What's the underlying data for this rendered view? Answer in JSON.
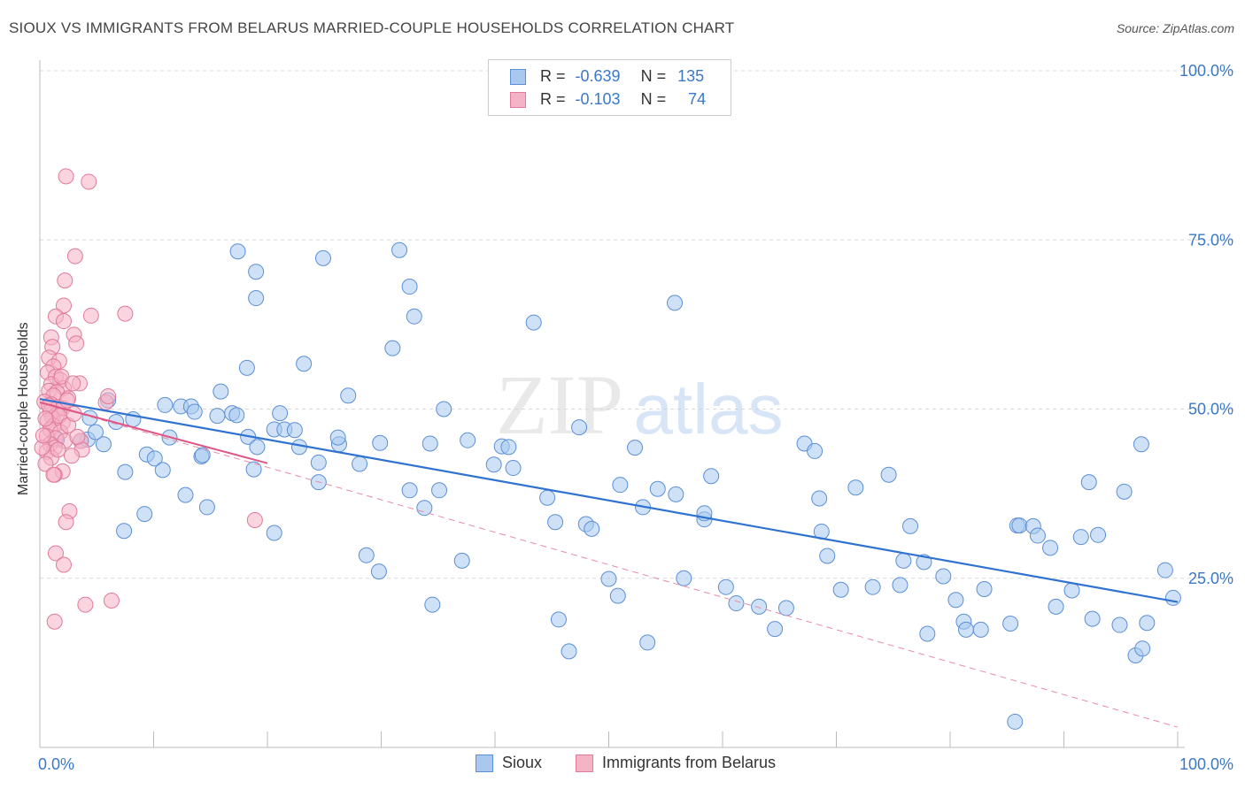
{
  "header": {
    "title": "SIOUX VS IMMIGRANTS FROM BELARUS MARRIED-COUPLE HOUSEHOLDS CORRELATION CHART",
    "source": "Source: ZipAtlas.com"
  },
  "watermark": {
    "zip": "ZIP",
    "atlas": "atlas"
  },
  "legend": {
    "rows": [
      {
        "r_label": "R =",
        "r_value": "-0.639",
        "n_label": "N =",
        "n_value": "135",
        "color": "#a8c8f0"
      },
      {
        "r_label": "R =",
        "r_value": "-0.103",
        "n_label": "N =",
        "n_value": "74",
        "color": "#f5b3c6"
      }
    ]
  },
  "bottom_legend": [
    {
      "label": "Sioux",
      "color": "#a8c8f0"
    },
    {
      "label": "Immigrants from Belarus",
      "color": "#f5b3c6"
    }
  ],
  "chart_data": {
    "type": "scatter",
    "title": "SIOUX VS IMMIGRANTS FROM BELARUS MARRIED-COUPLE HOUSEHOLDS CORRELATION CHART",
    "xlabel": "",
    "ylabel": "Married-couple Households",
    "xlim": [
      0,
      100
    ],
    "ylim": [
      0,
      100
    ],
    "x_tick_labels": [
      "0.0%",
      "100.0%"
    ],
    "y_tick_labels": [
      "25.0%",
      "50.0%",
      "75.0%",
      "100.0%"
    ],
    "y_ticks": [
      25,
      50,
      75,
      100
    ],
    "grid": true,
    "legend_position": "top-center",
    "series": [
      {
        "name": "Sioux",
        "color": "#a8c8f0",
        "stroke": "#5b8fd6",
        "trend": {
          "x": [
            0,
            100
          ],
          "y": [
            51.5,
            21.5
          ],
          "color": "#2f72d0"
        },
        "points": [
          [
            1.5,
            45.5
          ],
          [
            4.2,
            45.5
          ],
          [
            5.6,
            44.8
          ],
          [
            3.6,
            45.3
          ],
          [
            4.9,
            46.6
          ],
          [
            6.0,
            51.3
          ],
          [
            4.4,
            48.7
          ],
          [
            6.7,
            48.1
          ],
          [
            8.2,
            48.5
          ],
          [
            7.5,
            40.7
          ],
          [
            7.4,
            32.0
          ],
          [
            9.4,
            43.3
          ],
          [
            10.1,
            42.7
          ],
          [
            10.8,
            41.0
          ],
          [
            11.0,
            50.6
          ],
          [
            11.4,
            45.8
          ],
          [
            12.4,
            50.4
          ],
          [
            13.3,
            50.4
          ],
          [
            14.2,
            43.0
          ],
          [
            14.3,
            43.2
          ],
          [
            12.8,
            37.3
          ],
          [
            14.7,
            35.5
          ],
          [
            15.6,
            49.0
          ],
          [
            15.9,
            52.6
          ],
          [
            16.9,
            49.4
          ],
          [
            17.3,
            49.1
          ],
          [
            17.4,
            73.3
          ],
          [
            19.0,
            70.3
          ],
          [
            18.8,
            41.1
          ],
          [
            19.0,
            66.4
          ],
          [
            18.3,
            45.9
          ],
          [
            19.1,
            44.4
          ],
          [
            20.6,
            47.0
          ],
          [
            21.1,
            49.4
          ],
          [
            21.5,
            47.0
          ],
          [
            22.4,
            46.9
          ],
          [
            22.8,
            44.4
          ],
          [
            24.5,
            42.1
          ],
          [
            23.2,
            56.7
          ],
          [
            24.5,
            39.2
          ],
          [
            24.9,
            72.3
          ],
          [
            26.3,
            44.8
          ],
          [
            26.2,
            45.8
          ],
          [
            28.1,
            41.9
          ],
          [
            27.1,
            52.0
          ],
          [
            28.7,
            28.4
          ],
          [
            29.8,
            26.0
          ],
          [
            29.9,
            45.0
          ],
          [
            31.0,
            59.0
          ],
          [
            31.6,
            73.5
          ],
          [
            32.5,
            68.1
          ],
          [
            32.9,
            63.7
          ],
          [
            32.5,
            38.0
          ],
          [
            34.3,
            44.9
          ],
          [
            34.5,
            21.1
          ],
          [
            35.1,
            38.0
          ],
          [
            35.5,
            50.0
          ],
          [
            37.1,
            27.6
          ],
          [
            37.6,
            45.4
          ],
          [
            39.9,
            41.8
          ],
          [
            40.6,
            44.5
          ],
          [
            41.2,
            44.4
          ],
          [
            41.6,
            41.3
          ],
          [
            43.4,
            62.8
          ],
          [
            44.6,
            36.9
          ],
          [
            45.3,
            33.3
          ],
          [
            45.6,
            18.9
          ],
          [
            46.5,
            14.2
          ],
          [
            47.4,
            47.3
          ],
          [
            48.0,
            33.0
          ],
          [
            48.5,
            32.3
          ],
          [
            50.0,
            24.9
          ],
          [
            50.8,
            22.4
          ],
          [
            51.0,
            38.8
          ],
          [
            52.3,
            44.3
          ],
          [
            53.0,
            35.5
          ],
          [
            53.4,
            15.5
          ],
          [
            54.3,
            38.2
          ],
          [
            55.8,
            65.7
          ],
          [
            55.9,
            37.4
          ],
          [
            56.6,
            25.0
          ],
          [
            58.4,
            33.7
          ],
          [
            59.0,
            40.1
          ],
          [
            60.3,
            23.7
          ],
          [
            61.2,
            21.3
          ],
          [
            63.2,
            20.8
          ],
          [
            64.6,
            17.5
          ],
          [
            65.6,
            20.6
          ],
          [
            67.2,
            44.9
          ],
          [
            68.1,
            43.8
          ],
          [
            68.5,
            36.8
          ],
          [
            68.7,
            31.9
          ],
          [
            69.2,
            28.3
          ],
          [
            70.4,
            23.3
          ],
          [
            71.7,
            38.4
          ],
          [
            73.2,
            23.7
          ],
          [
            74.6,
            40.3
          ],
          [
            75.6,
            24.0
          ],
          [
            75.9,
            27.6
          ],
          [
            76.5,
            32.7
          ],
          [
            78.0,
            16.8
          ],
          [
            79.4,
            25.3
          ],
          [
            80.5,
            21.8
          ],
          [
            81.2,
            18.6
          ],
          [
            81.4,
            17.4
          ],
          [
            82.7,
            17.4
          ],
          [
            83.0,
            23.4
          ],
          [
            85.3,
            18.3
          ],
          [
            85.9,
            32.8
          ],
          [
            86.1,
            32.8
          ],
          [
            87.3,
            32.7
          ],
          [
            87.7,
            31.3
          ],
          [
            88.8,
            29.5
          ],
          [
            89.3,
            20.8
          ],
          [
            90.7,
            23.2
          ],
          [
            92.2,
            39.2
          ],
          [
            92.5,
            19.0
          ],
          [
            93.0,
            31.4
          ],
          [
            94.9,
            18.1
          ],
          [
            96.3,
            13.6
          ],
          [
            96.9,
            14.6
          ],
          [
            96.8,
            44.8
          ],
          [
            97.3,
            18.4
          ],
          [
            98.9,
            26.2
          ],
          [
            99.6,
            22.1
          ],
          [
            95.3,
            37.8
          ],
          [
            91.5,
            31.1
          ],
          [
            85.7,
            3.8
          ],
          [
            58.4,
            34.6
          ],
          [
            33.8,
            35.4
          ],
          [
            18.2,
            56.1
          ],
          [
            13.6,
            49.6
          ],
          [
            9.2,
            34.5
          ],
          [
            20.6,
            31.7
          ],
          [
            77.7,
            27.4
          ]
        ]
      },
      {
        "name": "Immigrants from Belarus",
        "color": "#f5b3c6",
        "stroke": "#e07a9a",
        "trend": {
          "x": [
            0,
            20
          ],
          "y": [
            51.0,
            42.0
          ],
          "color": "#e05585"
        },
        "trend_extended": {
          "x": [
            0,
            100
          ],
          "y": [
            51.0,
            3.0
          ],
          "color": "#e88aa8"
        },
        "points": [
          [
            2.3,
            84.4
          ],
          [
            4.3,
            83.6
          ],
          [
            3.1,
            72.6
          ],
          [
            2.2,
            69.0
          ],
          [
            2.1,
            65.3
          ],
          [
            1.4,
            63.7
          ],
          [
            2.1,
            63.0
          ],
          [
            4.5,
            63.8
          ],
          [
            7.5,
            64.1
          ],
          [
            3.0,
            61.0
          ],
          [
            1.0,
            60.6
          ],
          [
            1.1,
            59.2
          ],
          [
            3.2,
            59.7
          ],
          [
            0.8,
            57.6
          ],
          [
            1.7,
            57.1
          ],
          [
            1.2,
            56.3
          ],
          [
            0.7,
            55.4
          ],
          [
            1.4,
            54.8
          ],
          [
            1.8,
            54.3
          ],
          [
            1.0,
            53.7
          ],
          [
            2.1,
            53.1
          ],
          [
            3.5,
            53.8
          ],
          [
            0.8,
            52.7
          ],
          [
            1.5,
            52.5
          ],
          [
            1.2,
            52.0
          ],
          [
            2.5,
            51.6
          ],
          [
            5.8,
            51.0
          ],
          [
            6.0,
            51.9
          ],
          [
            0.4,
            51.1
          ],
          [
            1.0,
            50.7
          ],
          [
            1.6,
            50.3
          ],
          [
            2.0,
            50.1
          ],
          [
            0.9,
            49.6
          ],
          [
            1.5,
            49.2
          ],
          [
            1.1,
            48.7
          ],
          [
            0.7,
            48.3
          ],
          [
            2.0,
            48.0
          ],
          [
            1.2,
            47.5
          ],
          [
            0.9,
            47.0
          ],
          [
            1.8,
            46.6
          ],
          [
            0.6,
            46.0
          ],
          [
            1.4,
            45.7
          ],
          [
            2.2,
            45.3
          ],
          [
            3.6,
            45.3
          ],
          [
            0.9,
            44.8
          ],
          [
            1.3,
            44.3
          ],
          [
            3.7,
            44.0
          ],
          [
            0.6,
            43.7
          ],
          [
            2.8,
            43.1
          ],
          [
            1.0,
            42.8
          ],
          [
            0.5,
            41.9
          ],
          [
            2.0,
            40.8
          ],
          [
            1.3,
            40.3
          ],
          [
            0.2,
            44.3
          ],
          [
            0.3,
            46.1
          ],
          [
            1.2,
            40.3
          ],
          [
            2.6,
            34.9
          ],
          [
            2.3,
            33.3
          ],
          [
            1.4,
            28.7
          ],
          [
            2.1,
            27.0
          ],
          [
            4.0,
            21.1
          ],
          [
            6.3,
            21.7
          ],
          [
            1.3,
            18.6
          ],
          [
            18.9,
            33.6
          ],
          [
            1.7,
            49.0
          ],
          [
            2.5,
            47.6
          ],
          [
            3.0,
            49.3
          ],
          [
            0.8,
            50.5
          ],
          [
            1.9,
            54.8
          ],
          [
            2.9,
            53.8
          ],
          [
            1.6,
            44.0
          ],
          [
            0.5,
            48.6
          ],
          [
            2.4,
            51.3
          ],
          [
            3.3,
            45.9
          ]
        ]
      }
    ]
  }
}
